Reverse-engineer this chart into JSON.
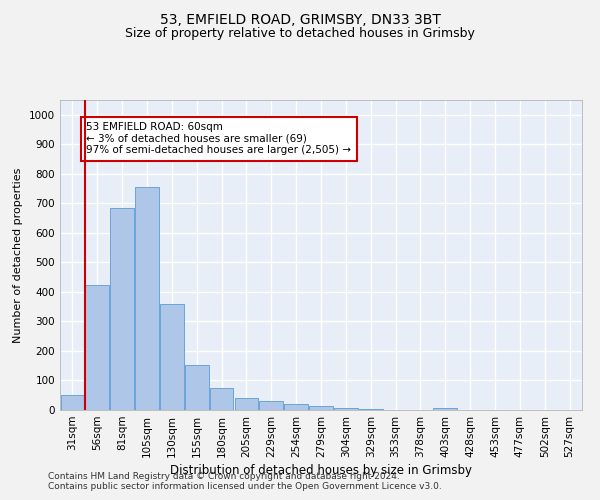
{
  "title1": "53, EMFIELD ROAD, GRIMSBY, DN33 3BT",
  "title2": "Size of property relative to detached houses in Grimsby",
  "xlabel": "Distribution of detached houses by size in Grimsby",
  "ylabel": "Number of detached properties",
  "categories": [
    "31sqm",
    "56sqm",
    "81sqm",
    "105sqm",
    "130sqm",
    "155sqm",
    "180sqm",
    "205sqm",
    "229sqm",
    "254sqm",
    "279sqm",
    "304sqm",
    "329sqm",
    "353sqm",
    "378sqm",
    "403sqm",
    "428sqm",
    "453sqm",
    "477sqm",
    "502sqm",
    "527sqm"
  ],
  "values": [
    50,
    425,
    685,
    755,
    360,
    153,
    75,
    40,
    30,
    22,
    12,
    8,
    5,
    0,
    0,
    8,
    0,
    0,
    0,
    0,
    0
  ],
  "bar_color": "#aec6e8",
  "bar_edge_color": "#5b9bd5",
  "vline_color": "#cc0000",
  "annotation_text": "53 EMFIELD ROAD: 60sqm\n← 3% of detached houses are smaller (69)\n97% of semi-detached houses are larger (2,505) →",
  "annotation_box_color": "#ffffff",
  "annotation_box_edge": "#cc0000",
  "ylim": [
    0,
    1050
  ],
  "yticks": [
    0,
    100,
    200,
    300,
    400,
    500,
    600,
    700,
    800,
    900,
    1000
  ],
  "footer1": "Contains HM Land Registry data © Crown copyright and database right 2024.",
  "footer2": "Contains public sector information licensed under the Open Government Licence v3.0.",
  "background_color": "#e8eef7",
  "grid_color": "#ffffff",
  "fig_background": "#f2f2f2",
  "title1_fontsize": 10,
  "title2_fontsize": 9,
  "xlabel_fontsize": 8.5,
  "ylabel_fontsize": 8,
  "tick_fontsize": 7.5,
  "annotation_fontsize": 7.5,
  "footer_fontsize": 6.5
}
